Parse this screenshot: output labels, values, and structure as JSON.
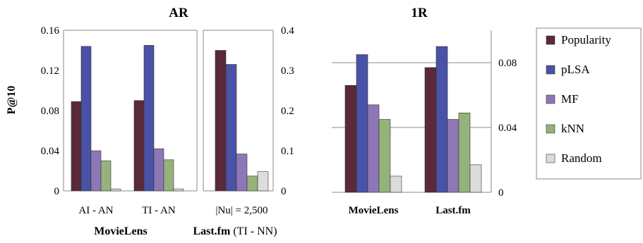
{
  "panel_titles": {
    "ar": "AR",
    "oner": "1R"
  },
  "ylabel": "P@10",
  "legend": [
    {
      "name": "Popularity",
      "color": "#5a2a38"
    },
    {
      "name": "pLSA",
      "color": "#4a52a6"
    },
    {
      "name": "MF",
      "color": "#8e77b7"
    },
    {
      "name": "kNN",
      "color": "#95b27a"
    },
    {
      "name": "Random",
      "color": "#dcdcdc"
    }
  ],
  "group_labels": {
    "movielens_ar": "MovieLens",
    "lastfm_ar_bold": "Last.fm",
    "lastfm_ar_rest": " (TI - NN)",
    "movielens_1r": "MovieLens",
    "lastfm_1r": "Last.fm"
  },
  "chart_data": [
    {
      "type": "bar",
      "panel": "AR - MovieLens",
      "categories": [
        "AI - AN",
        "TI - AN"
      ],
      "series": [
        {
          "name": "Popularity",
          "values": [
            0.089,
            0.09
          ]
        },
        {
          "name": "pLSA",
          "values": [
            0.144,
            0.145
          ]
        },
        {
          "name": "MF",
          "values": [
            0.04,
            0.042
          ]
        },
        {
          "name": "kNN",
          "values": [
            0.03,
            0.031
          ]
        },
        {
          "name": "Random",
          "values": [
            0.002,
            0.002
          ]
        }
      ],
      "ylim": [
        0,
        0.16
      ],
      "yticks": [
        "0",
        "0.04",
        "0.08",
        "0.12",
        "0.16"
      ],
      "ylabel": "P@10",
      "grid": false
    },
    {
      "type": "bar",
      "panel": "AR - Last.fm",
      "categories": [
        "|Nu| = 2,500"
      ],
      "series": [
        {
          "name": "Popularity",
          "values": [
            0.35
          ]
        },
        {
          "name": "pLSA",
          "values": [
            0.315
          ]
        },
        {
          "name": "MF",
          "values": [
            0.092
          ]
        },
        {
          "name": "kNN",
          "values": [
            0.037
          ]
        },
        {
          "name": "Random",
          "values": [
            0.048
          ]
        }
      ],
      "ylim": [
        0,
        0.4
      ],
      "yticks": [
        "0",
        "0.1",
        "0.2",
        "0.3",
        "0.4"
      ],
      "grid": false
    },
    {
      "type": "bar",
      "panel": "1R",
      "categories": [
        "MovieLens",
        "Last.fm"
      ],
      "series": [
        {
          "name": "Popularity",
          "values": [
            0.066,
            0.077
          ]
        },
        {
          "name": "pLSA",
          "values": [
            0.085,
            0.09
          ]
        },
        {
          "name": "MF",
          "values": [
            0.054,
            0.045
          ]
        },
        {
          "name": "kNN",
          "values": [
            0.045,
            0.049
          ]
        },
        {
          "name": "Random",
          "values": [
            0.01,
            0.017
          ]
        }
      ],
      "ylim": [
        0,
        0.1
      ],
      "yticks": [
        "0",
        "0.04",
        "0.08"
      ],
      "grid": true
    }
  ]
}
